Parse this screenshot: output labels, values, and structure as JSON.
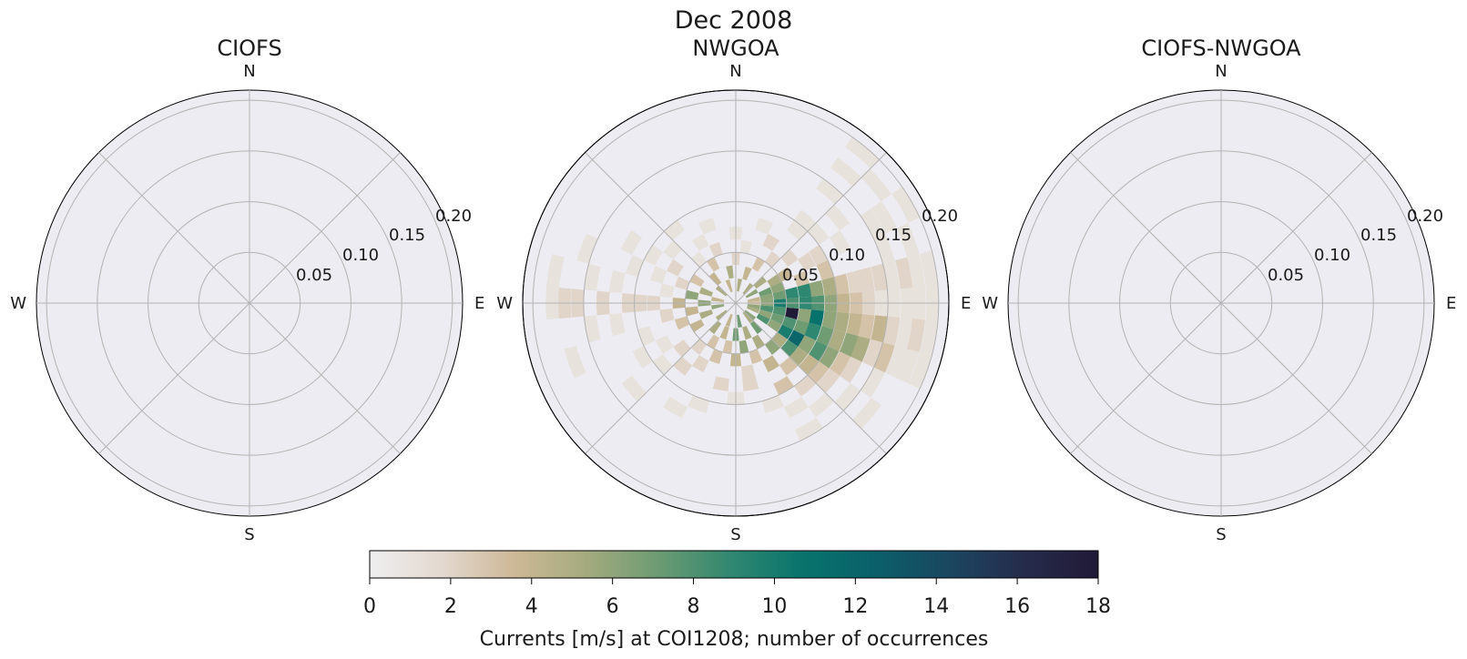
{
  "figure": {
    "suptitle": "Dec 2008"
  },
  "colormap": {
    "name": "cmocean.rain",
    "stops": [
      "#eeeeef",
      "#e3d8cf",
      "#cdb896",
      "#a3aa7e",
      "#6a9a72",
      "#2e8770",
      "#07736c",
      "#0b5e6a",
      "#1b4560",
      "#262b4b",
      "#201a36"
    ]
  },
  "chart_data": [
    {
      "type": "heatmap",
      "subtype": "polar-histogram",
      "title": "CIOFS",
      "direction_labels": [
        "N",
        "E",
        "S",
        "W"
      ],
      "radial_ticks": [
        0.05,
        0.1,
        0.15,
        0.2
      ],
      "radial_tick_labels": [
        "0.05",
        "0.10",
        "0.15",
        "0.20"
      ],
      "rlim": [
        0,
        0.21
      ],
      "grid": true,
      "cells": []
    },
    {
      "type": "heatmap",
      "subtype": "polar-histogram",
      "title": "NWGOA",
      "direction_labels": [
        "N",
        "E",
        "S",
        "W"
      ],
      "radial_ticks": [
        0.05,
        0.1,
        0.15,
        0.2
      ],
      "radial_tick_labels": [
        "0.05",
        "0.10",
        "0.15",
        "0.20"
      ],
      "rlim": [
        0,
        0.21
      ],
      "grid": true,
      "bin_width_deg": 10,
      "bin_width_r": 0.0125,
      "cells_note": "each cell: [direction_deg (compass, 0=N clockwise), speed_m_s, count]",
      "cells": [
        [
          90,
          0.018,
          3
        ],
        [
          100,
          0.018,
          6
        ],
        [
          110,
          0.018,
          5
        ],
        [
          80,
          0.018,
          4
        ],
        [
          130,
          0.018,
          6
        ],
        [
          140,
          0.018,
          5
        ],
        [
          170,
          0.018,
          7
        ],
        [
          200,
          0.018,
          4
        ],
        [
          230,
          0.018,
          5
        ],
        [
          260,
          0.018,
          6
        ],
        [
          280,
          0.018,
          4
        ],
        [
          310,
          0.018,
          5
        ],
        [
          340,
          0.018,
          4
        ],
        [
          10,
          0.018,
          5
        ],
        [
          40,
          0.018,
          5
        ],
        [
          60,
          0.018,
          6
        ],
        [
          90,
          0.031,
          6
        ],
        [
          100,
          0.031,
          8
        ],
        [
          80,
          0.031,
          6
        ],
        [
          110,
          0.031,
          6
        ],
        [
          120,
          0.031,
          8
        ],
        [
          140,
          0.031,
          7
        ],
        [
          160,
          0.031,
          5
        ],
        [
          180,
          0.031,
          7
        ],
        [
          200,
          0.031,
          4
        ],
        [
          220,
          0.031,
          5
        ],
        [
          250,
          0.031,
          5
        ],
        [
          270,
          0.031,
          6
        ],
        [
          290,
          0.031,
          5
        ],
        [
          320,
          0.031,
          4
        ],
        [
          350,
          0.031,
          5
        ],
        [
          20,
          0.031,
          4
        ],
        [
          50,
          0.031,
          5
        ],
        [
          70,
          0.031,
          7
        ],
        [
          90,
          0.044,
          10
        ],
        [
          100,
          0.044,
          8
        ],
        [
          110,
          0.044,
          7
        ],
        [
          80,
          0.044,
          7
        ],
        [
          120,
          0.044,
          6
        ],
        [
          150,
          0.044,
          5
        ],
        [
          170,
          0.044,
          6
        ],
        [
          190,
          0.044,
          3
        ],
        [
          210,
          0.044,
          3
        ],
        [
          240,
          0.044,
          4
        ],
        [
          260,
          0.044,
          4
        ],
        [
          280,
          0.044,
          6
        ],
        [
          300,
          0.044,
          3
        ],
        [
          330,
          0.044,
          3
        ],
        [
          0,
          0.044,
          2
        ],
        [
          30,
          0.044,
          3
        ],
        [
          60,
          0.044,
          5
        ],
        [
          70,
          0.044,
          6
        ],
        [
          100,
          0.056,
          18
        ],
        [
          90,
          0.056,
          8
        ],
        [
          110,
          0.056,
          8
        ],
        [
          80,
          0.056,
          9
        ],
        [
          120,
          0.056,
          10
        ],
        [
          130,
          0.056,
          5
        ],
        [
          140,
          0.056,
          6
        ],
        [
          160,
          0.056,
          3
        ],
        [
          180,
          0.056,
          4
        ],
        [
          200,
          0.056,
          3
        ],
        [
          220,
          0.056,
          2
        ],
        [
          250,
          0.056,
          3
        ],
        [
          270,
          0.056,
          4
        ],
        [
          290,
          0.056,
          2
        ],
        [
          320,
          0.056,
          1
        ],
        [
          340,
          0.056,
          2
        ],
        [
          10,
          0.056,
          1
        ],
        [
          40,
          0.056,
          2
        ],
        [
          60,
          0.056,
          4
        ],
        [
          90,
          0.069,
          9
        ],
        [
          80,
          0.069,
          9
        ],
        [
          100,
          0.069,
          6
        ],
        [
          110,
          0.069,
          7
        ],
        [
          120,
          0.069,
          12
        ],
        [
          130,
          0.069,
          8
        ],
        [
          150,
          0.069,
          4
        ],
        [
          170,
          0.069,
          2
        ],
        [
          210,
          0.069,
          2
        ],
        [
          230,
          0.069,
          2
        ],
        [
          260,
          0.069,
          2
        ],
        [
          280,
          0.069,
          1
        ],
        [
          300,
          0.069,
          2
        ],
        [
          330,
          0.069,
          1
        ],
        [
          0,
          0.069,
          1
        ],
        [
          30,
          0.069,
          2
        ],
        [
          50,
          0.069,
          2
        ],
        [
          70,
          0.069,
          3
        ],
        [
          90,
          0.081,
          8
        ],
        [
          80,
          0.081,
          6
        ],
        [
          100,
          0.081,
          11
        ],
        [
          110,
          0.081,
          9
        ],
        [
          120,
          0.081,
          6
        ],
        [
          130,
          0.081,
          5
        ],
        [
          140,
          0.081,
          3
        ],
        [
          170,
          0.081,
          2
        ],
        [
          190,
          0.081,
          2
        ],
        [
          220,
          0.081,
          2
        ],
        [
          240,
          0.081,
          1
        ],
        [
          270,
          0.081,
          2
        ],
        [
          290,
          0.081,
          1
        ],
        [
          310,
          0.081,
          1
        ],
        [
          340,
          0.081,
          1
        ],
        [
          20,
          0.081,
          1
        ],
        [
          60,
          0.081,
          2
        ],
        [
          90,
          0.094,
          6
        ],
        [
          80,
          0.094,
          5
        ],
        [
          100,
          0.094,
          6
        ],
        [
          110,
          0.094,
          7
        ],
        [
          120,
          0.094,
          8
        ],
        [
          130,
          0.094,
          4
        ],
        [
          150,
          0.094,
          3
        ],
        [
          180,
          0.094,
          1
        ],
        [
          230,
          0.094,
          1
        ],
        [
          250,
          0.094,
          1
        ],
        [
          270,
          0.094,
          2
        ],
        [
          300,
          0.094,
          1
        ],
        [
          320,
          0.094,
          1
        ],
        [
          40,
          0.094,
          1
        ],
        [
          60,
          0.094,
          2
        ],
        [
          70,
          0.094,
          3
        ],
        [
          90,
          0.106,
          4
        ],
        [
          80,
          0.106,
          3
        ],
        [
          100,
          0.106,
          5
        ],
        [
          110,
          0.106,
          5
        ],
        [
          120,
          0.106,
          6
        ],
        [
          130,
          0.106,
          3
        ],
        [
          140,
          0.106,
          2
        ],
        [
          160,
          0.106,
          1
        ],
        [
          200,
          0.106,
          1
        ],
        [
          240,
          0.106,
          1
        ],
        [
          270,
          0.106,
          2
        ],
        [
          290,
          0.106,
          1
        ],
        [
          40,
          0.106,
          1
        ],
        [
          50,
          0.106,
          1
        ],
        [
          90,
          0.119,
          3
        ],
        [
          80,
          0.119,
          2
        ],
        [
          100,
          0.119,
          4
        ],
        [
          110,
          0.119,
          6
        ],
        [
          120,
          0.119,
          3
        ],
        [
          130,
          0.119,
          2
        ],
        [
          150,
          0.119,
          1
        ],
        [
          210,
          0.119,
          1
        ],
        [
          260,
          0.119,
          1
        ],
        [
          280,
          0.119,
          1
        ],
        [
          300,
          0.119,
          1
        ],
        [
          60,
          0.119,
          1
        ],
        [
          90,
          0.131,
          2
        ],
        [
          80,
          0.131,
          2
        ],
        [
          100,
          0.131,
          3
        ],
        [
          110,
          0.131,
          5
        ],
        [
          120,
          0.131,
          2
        ],
        [
          140,
          0.131,
          1
        ],
        [
          230,
          0.131,
          1
        ],
        [
          270,
          0.131,
          2
        ],
        [
          50,
          0.131,
          1
        ],
        [
          90,
          0.144,
          1
        ],
        [
          80,
          0.144,
          2
        ],
        [
          100,
          0.144,
          4
        ],
        [
          110,
          0.144,
          2
        ],
        [
          130,
          0.144,
          1
        ],
        [
          150,
          0.144,
          1
        ],
        [
          260,
          0.144,
          1
        ],
        [
          280,
          0.144,
          1
        ],
        [
          40,
          0.144,
          1
        ],
        [
          90,
          0.156,
          1
        ],
        [
          80,
          0.156,
          1
        ],
        [
          100,
          0.156,
          2
        ],
        [
          110,
          0.156,
          3
        ],
        [
          120,
          0.156,
          1
        ],
        [
          70,
          0.156,
          1
        ],
        [
          60,
          0.156,
          1
        ],
        [
          270,
          0.156,
          2
        ],
        [
          290,
          0.156,
          1
        ],
        [
          90,
          0.169,
          1
        ],
        [
          80,
          0.169,
          2
        ],
        [
          100,
          0.169,
          1
        ],
        [
          110,
          0.169,
          1
        ],
        [
          130,
          0.169,
          1
        ],
        [
          60,
          0.169,
          1
        ],
        [
          40,
          0.169,
          1
        ],
        [
          270,
          0.169,
          2
        ],
        [
          250,
          0.169,
          1
        ],
        [
          90,
          0.181,
          1
        ],
        [
          80,
          0.181,
          1
        ],
        [
          100,
          0.181,
          2
        ],
        [
          110,
          0.181,
          1
        ],
        [
          70,
          0.181,
          1
        ],
        [
          50,
          0.181,
          1
        ],
        [
          270,
          0.181,
          1
        ],
        [
          280,
          0.181,
          1
        ],
        [
          90,
          0.194,
          1
        ],
        [
          100,
          0.194,
          1
        ],
        [
          110,
          0.194,
          1
        ],
        [
          80,
          0.194,
          1
        ],
        [
          60,
          0.194,
          1
        ],
        [
          40,
          0.194,
          1
        ]
      ]
    },
    {
      "type": "heatmap",
      "subtype": "polar-histogram",
      "title": "CIOFS-NWGOA",
      "direction_labels": [
        "N",
        "E",
        "S",
        "W"
      ],
      "radial_ticks": [
        0.05,
        0.1,
        0.15,
        0.2
      ],
      "radial_tick_labels": [
        "0.05",
        "0.10",
        "0.15",
        "0.20"
      ],
      "rlim": [
        0,
        0.21
      ],
      "grid": true,
      "cells": []
    }
  ],
  "colorbar": {
    "label": "Currents [m/s] at COI1208; number of occurrences",
    "vmin": 0,
    "vmax": 18,
    "ticks": [
      0,
      2,
      4,
      6,
      8,
      10,
      12,
      14,
      16,
      18
    ],
    "tick_labels": [
      "0",
      "2",
      "4",
      "6",
      "8",
      "10",
      "12",
      "14",
      "16",
      "18"
    ]
  }
}
